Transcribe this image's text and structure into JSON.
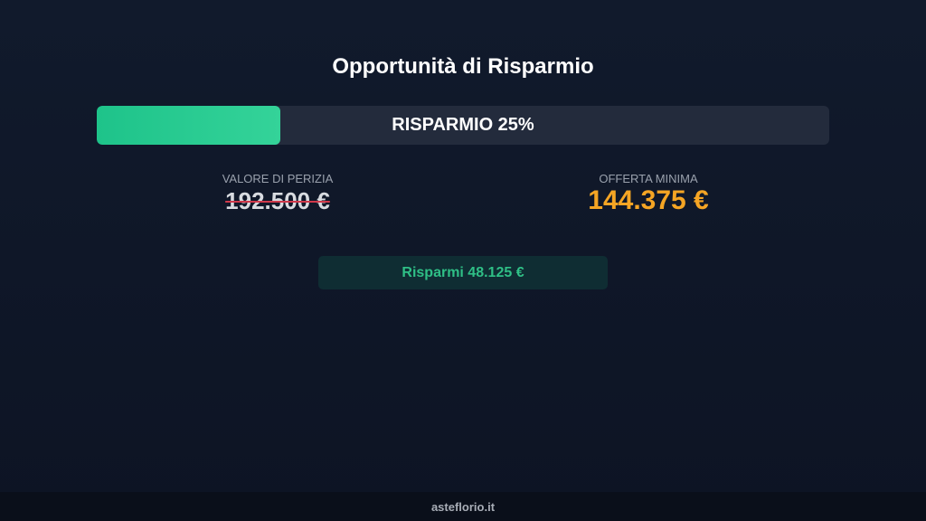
{
  "title": "Opportunità di Risparmio",
  "progress": {
    "label": "RISPARMIO 25%",
    "percent": 25,
    "fill_color": "#34d399"
  },
  "valore": {
    "label": "VALORE DI PERIZIA",
    "value": "192.500 €"
  },
  "offerta": {
    "label": "OFFERTA MINIMA",
    "value": "144.375 €",
    "color": "#f5a524"
  },
  "savings": "Risparmi 48.125 €",
  "footer": "asteflorio.it"
}
